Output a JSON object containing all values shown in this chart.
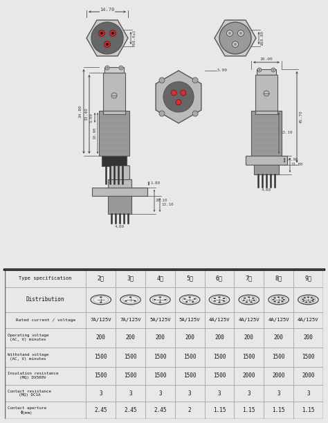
{
  "bg_color": "#e8e8e8",
  "table_bg": "#ffffff",
  "table_border": "#aaaaaa",
  "line_color": "#555555",
  "dim_color": "#444444",
  "connector_hex_color": "#cccccc",
  "connector_body_dark": "#666666",
  "connector_body_mid": "#999999",
  "connector_body_light": "#bbbbbb",
  "pin_red": "#cc3333",
  "pin_dark": "#333333",
  "table_header_row1": [
    "Type specification",
    "2芯",
    "3芯",
    "4芯",
    "5芯",
    "6芯",
    "7芯",
    "8芯",
    "9芯"
  ],
  "table_rows": [
    [
      "Rated current / voltage",
      "7A/125V",
      "7A/125V",
      "5A/125V",
      "5A/125V",
      "4A/125V",
      "4A/125V",
      "4A/125V",
      "4A/125V"
    ],
    [
      "Operating voltage\n(AC, V) minutes",
      "200",
      "200",
      "200",
      "200",
      "200",
      "200",
      "200",
      "200"
    ],
    [
      "Withstand voltage\n(AC, V) minutes",
      "1500",
      "1500",
      "1500",
      "1500",
      "1500",
      "1500",
      "1500",
      "1500"
    ],
    [
      "Insulation resistance\n(MQ) DV500V",
      "1500",
      "1500",
      "1500",
      "1500",
      "1500",
      "2000",
      "2000",
      "2000"
    ],
    [
      "Contact resistance\n(MQ) DC1A",
      "3",
      "3",
      "3",
      "3",
      "3",
      "3",
      "3",
      "3"
    ],
    [
      "Contact aperture\nΦ(mm)",
      "2.45",
      "2.45",
      "2.45",
      "2",
      "1.15",
      "1.15",
      "1.15",
      "1.15"
    ]
  ]
}
